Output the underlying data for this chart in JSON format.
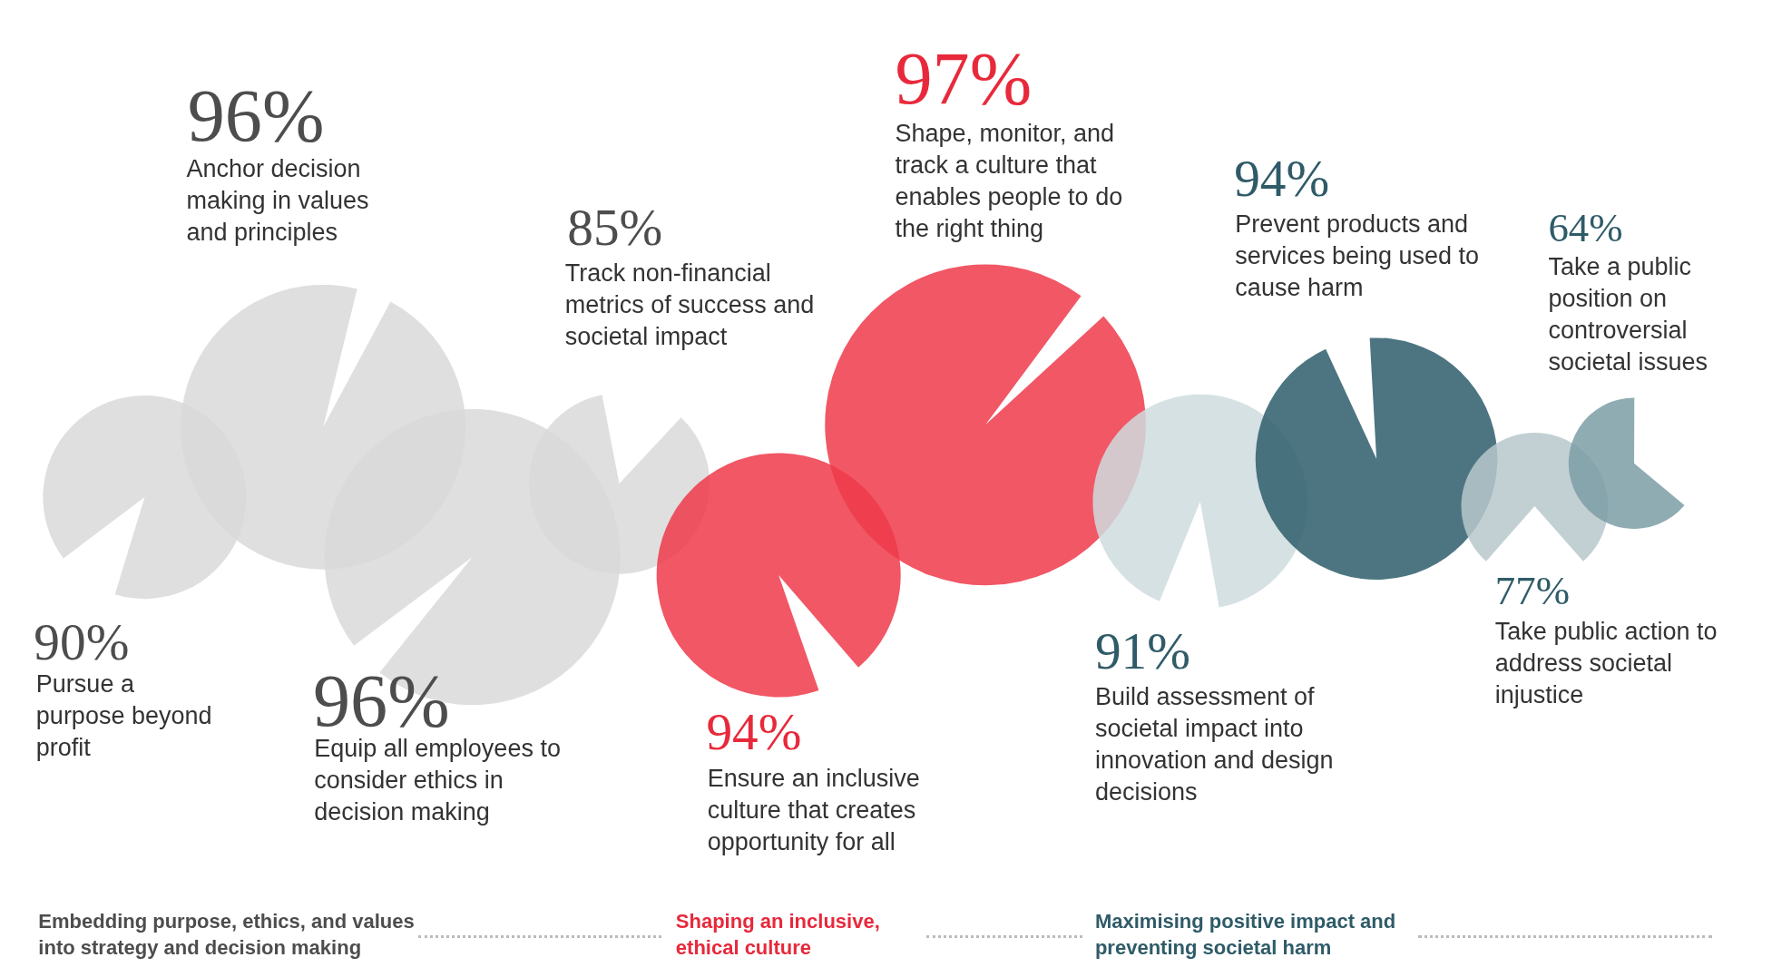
{
  "chart_data": {
    "type": "other",
    "categories": [
      "Pursue a purpose beyond profit",
      "Anchor decision making in values and principles",
      "Equip all employees to consider ethics in decision making",
      "Track non-financial metrics of success and societal impact",
      "Ensure an inclusive culture that creates opportunity for all",
      "Shape, monitor, and track a culture that enables people to do the right thing",
      "Build assessment of societal impact into innovation and design decisions",
      "Prevent products and services being used to cause harm",
      "Take public action to address societal injustice",
      "Take a public position on controversial societal issues"
    ],
    "colors": [
      "#d9d9d9",
      "#d9d9d9",
      "#d9d9d9",
      "#d9d9d9",
      "#ee3a4a",
      "#ee3a4a",
      "#cfdcdf",
      "#2e5d6b",
      "#b7c8cd",
      "#7d9ea6"
    ],
    "series": [
      {
        "name": "Embedding purpose, ethics, and values into strategy and decision making",
        "color": "#4d4d4d",
        "values": [
          90,
          96,
          96,
          85,
          null,
          null,
          null,
          null,
          null,
          null
        ],
        "value_labels": [
          "90%",
          "96%",
          "96%",
          "85%",
          null,
          null,
          null,
          null,
          null,
          null
        ]
      },
      {
        "name": "Shaping an inclusive, ethical culture",
        "color": "#e8293b",
        "values": [
          null,
          null,
          null,
          null,
          94,
          97,
          null,
          null,
          null,
          null
        ],
        "value_labels": [
          null,
          null,
          null,
          null,
          "94%",
          "97%",
          null,
          null,
          null,
          null
        ]
      },
      {
        "name": "Maximising positive impact and preventing societal harm",
        "color": "#2f5b68",
        "values": [
          null,
          null,
          null,
          null,
          null,
          null,
          91,
          94,
          77,
          64
        ],
        "value_labels": [
          null,
          null,
          null,
          null,
          null,
          null,
          "91%",
          "94%",
          "77%",
          "64%"
        ]
      }
    ]
  }
}
